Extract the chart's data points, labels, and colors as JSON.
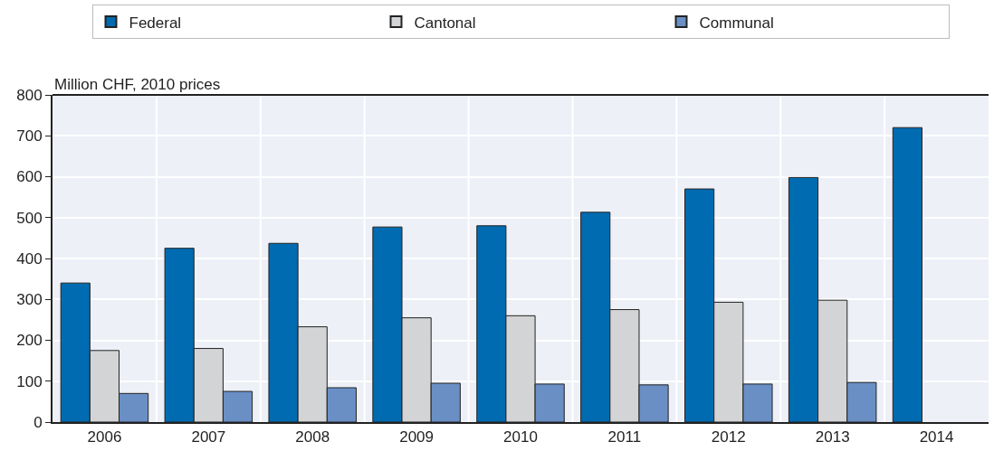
{
  "chart_data": {
    "type": "bar",
    "ylabel": "Million CHF, 2010 prices",
    "categories": [
      "2006",
      "2007",
      "2008",
      "2009",
      "2010",
      "2011",
      "2012",
      "2013",
      "2014"
    ],
    "series": [
      {
        "name": "Federal",
        "color": "#006bb0",
        "values": [
          340,
          425,
          437,
          477,
          480,
          513,
          570,
          598,
          720
        ]
      },
      {
        "name": "Cantonal",
        "color": "#d3d4d6",
        "values": [
          175,
          180,
          233,
          255,
          260,
          275,
          293,
          298,
          null
        ]
      },
      {
        "name": "Communal",
        "color": "#6a8fc5",
        "values": [
          70,
          75,
          84,
          95,
          93,
          91,
          93,
          97,
          null
        ]
      }
    ],
    "ylim": [
      0,
      800
    ],
    "yticks": [
      0,
      100,
      200,
      300,
      400,
      500,
      600,
      700,
      800
    ],
    "grid": true,
    "legend": "top"
  }
}
